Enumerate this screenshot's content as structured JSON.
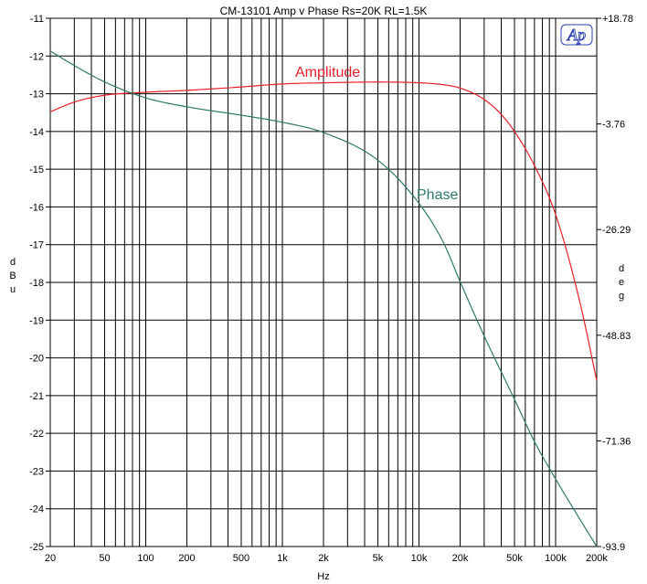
{
  "chart_data": {
    "type": "line",
    "title": "CM-13101 Amp v Phase  Rs=20K  RL=1.5K",
    "xlabel": "Hz",
    "ylabel": "dBu",
    "y2label": "deg",
    "x_scale": "log",
    "xlim": [
      20,
      200000
    ],
    "ylim": [
      -25,
      -11
    ],
    "y2lim": [
      -93.9,
      18.78
    ],
    "grid": true,
    "logo": "Ap",
    "x_ticks": [
      {
        "value": 20,
        "label": "20"
      },
      {
        "value": 50,
        "label": "50"
      },
      {
        "value": 100,
        "label": "100"
      },
      {
        "value": 200,
        "label": "200"
      },
      {
        "value": 500,
        "label": "500"
      },
      {
        "value": 1000,
        "label": "1k"
      },
      {
        "value": 2000,
        "label": "2k"
      },
      {
        "value": 5000,
        "label": "5k"
      },
      {
        "value": 10000,
        "label": "10k"
      },
      {
        "value": 20000,
        "label": "20k"
      },
      {
        "value": 50000,
        "label": "50k"
      },
      {
        "value": 100000,
        "label": "100k"
      },
      {
        "value": 200000,
        "label": "200k"
      }
    ],
    "y_ticks": [
      "-11",
      "-12",
      "-13",
      "-14",
      "-15",
      "-16",
      "-17",
      "-18",
      "-19",
      "-20",
      "-21",
      "-22",
      "-23",
      "-24",
      "-25"
    ],
    "y2_ticks": [
      {
        "value": 18.78,
        "label": "+18.78"
      },
      {
        "value": -3.76,
        "label": "-3.76"
      },
      {
        "value": -26.29,
        "label": "-26.29"
      },
      {
        "value": -48.83,
        "label": "-48.83"
      },
      {
        "value": -71.36,
        "label": "-71.36"
      },
      {
        "value": -93.9,
        "label": "-93.9"
      }
    ],
    "series": [
      {
        "name": "Amplitude",
        "color": "#e8202a",
        "axis": "left",
        "x": [
          20,
          30,
          50,
          100,
          200,
          500,
          1000,
          2000,
          5000,
          10000,
          15000,
          20000,
          30000,
          40000,
          50000,
          70000,
          100000,
          150000,
          200000
        ],
        "y": [
          -13.48,
          -13.22,
          -13.04,
          -12.96,
          -12.91,
          -12.82,
          -12.74,
          -12.71,
          -12.69,
          -12.71,
          -12.76,
          -12.85,
          -13.15,
          -13.55,
          -14.0,
          -14.9,
          -16.2,
          -18.5,
          -20.6
        ]
      },
      {
        "name": "Phase",
        "color": "#2f7a65",
        "axis": "right",
        "x": [
          20,
          30,
          50,
          100,
          200,
          500,
          1000,
          2000,
          5000,
          10000,
          15000,
          20000,
          30000,
          50000,
          70000,
          100000,
          150000,
          200000
        ],
        "y": [
          11.8,
          8.7,
          5.2,
          1.8,
          -0.1,
          -1.9,
          -3.4,
          -5.6,
          -11.5,
          -20.7,
          -28.9,
          -37.4,
          -49.0,
          -62.5,
          -71.5,
          -79.5,
          -88.0,
          -93.9
        ]
      }
    ]
  }
}
